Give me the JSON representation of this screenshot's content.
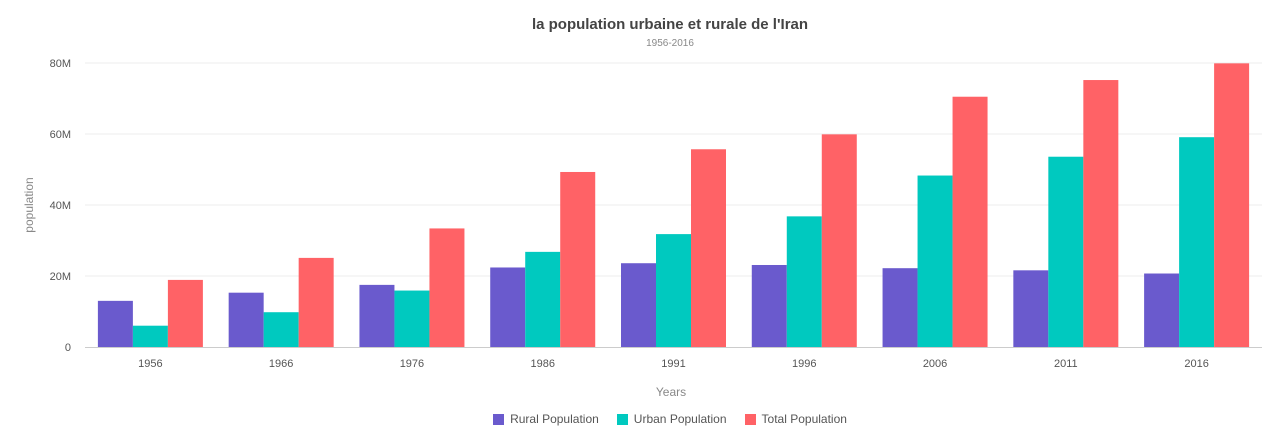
{
  "chart_data": {
    "type": "bar",
    "title": "la population urbaine et rurale de l'Iran",
    "subtitle": "1956-2016",
    "xlabel": "Years",
    "ylabel": "population",
    "ylim": [
      0,
      80000000
    ],
    "y_ticks": [
      {
        "value": 0,
        "label": "0"
      },
      {
        "value": 20000000,
        "label": "20M"
      },
      {
        "value": 40000000,
        "label": "40M"
      },
      {
        "value": 60000000,
        "label": "60M"
      },
      {
        "value": 80000000,
        "label": "80M"
      }
    ],
    "grid": true,
    "legend_position": "bottom-center",
    "categories": [
      "1956",
      "1966",
      "1976",
      "1986",
      "1991",
      "1996",
      "2006",
      "2011",
      "2016"
    ],
    "series": [
      {
        "name": "Rural Population",
        "color": "#6a5acd",
        "values": [
          13000000,
          15300000,
          17500000,
          22400000,
          23600000,
          23100000,
          22200000,
          21600000,
          20700000
        ]
      },
      {
        "name": "Urban Population",
        "color": "#00c9bf",
        "values": [
          6000000,
          9800000,
          15900000,
          26800000,
          31800000,
          36800000,
          48300000,
          53600000,
          59100000
        ]
      },
      {
        "name": "Total Population",
        "color": "#ff6266",
        "values": [
          18900000,
          25100000,
          33400000,
          49300000,
          55700000,
          59900000,
          70500000,
          75200000,
          79900000
        ]
      }
    ]
  }
}
